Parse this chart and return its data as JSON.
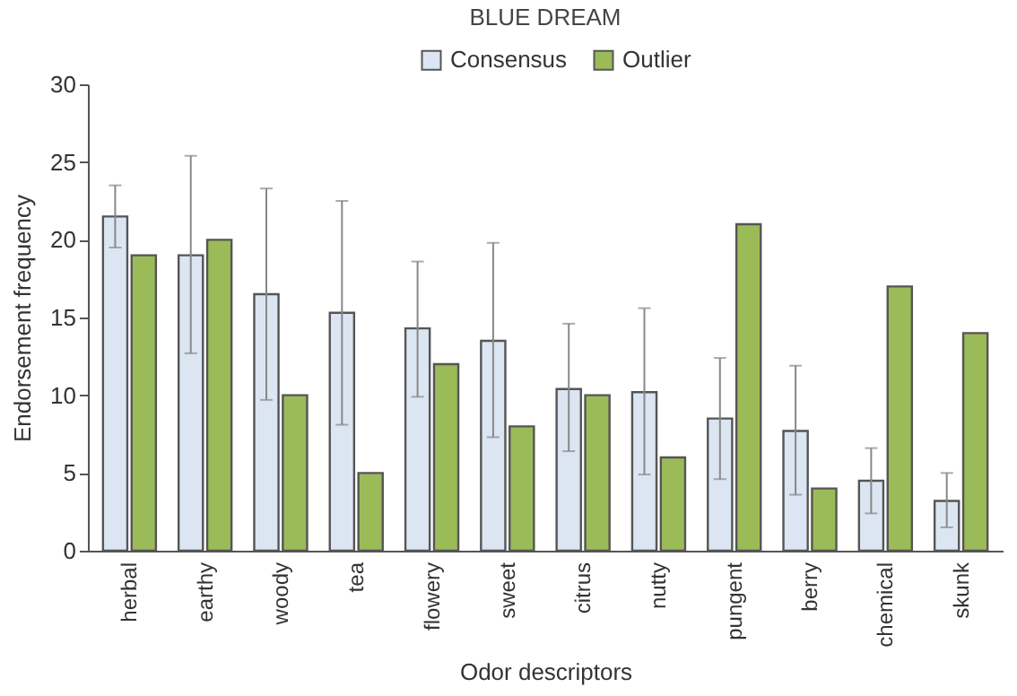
{
  "chart_data": {
    "type": "bar",
    "title": "BLUE DREAM",
    "xlabel": "Odor descriptors",
    "ylabel": "Endorsement frequency",
    "categories": [
      "herbal",
      "earthy",
      "woody",
      "tea",
      "flowery",
      "sweet",
      "citrus",
      "nutty",
      "pungent",
      "berry",
      "chemical",
      "skunk"
    ],
    "series": [
      {
        "name": "Consensus",
        "color": "#dce6f2",
        "values": [
          21.5,
          19,
          16.5,
          15.3,
          14.3,
          13.5,
          10.4,
          10.2,
          8.5,
          7.7,
          4.5,
          3.2
        ],
        "errors": [
          [
            19.5,
            23.5
          ],
          [
            12.7,
            25.4
          ],
          [
            9.7,
            23.3
          ],
          [
            8.1,
            22.5
          ],
          [
            9.9,
            18.6
          ],
          [
            7.3,
            19.8
          ],
          [
            6.4,
            14.6
          ],
          [
            4.9,
            15.6
          ],
          [
            4.6,
            12.4
          ],
          [
            3.6,
            11.9
          ],
          [
            2.4,
            6.6
          ],
          [
            1.5,
            5.0
          ]
        ]
      },
      {
        "name": "Outlier",
        "color": "#9bbb59",
        "values": [
          19,
          20,
          10,
          5,
          12,
          8,
          10,
          6,
          21,
          4,
          17,
          14
        ]
      }
    ],
    "ylim": [
      0,
      30
    ],
    "yticks": [
      0,
      5,
      10,
      15,
      20,
      25,
      30
    ],
    "legend": "top",
    "grid": false
  }
}
